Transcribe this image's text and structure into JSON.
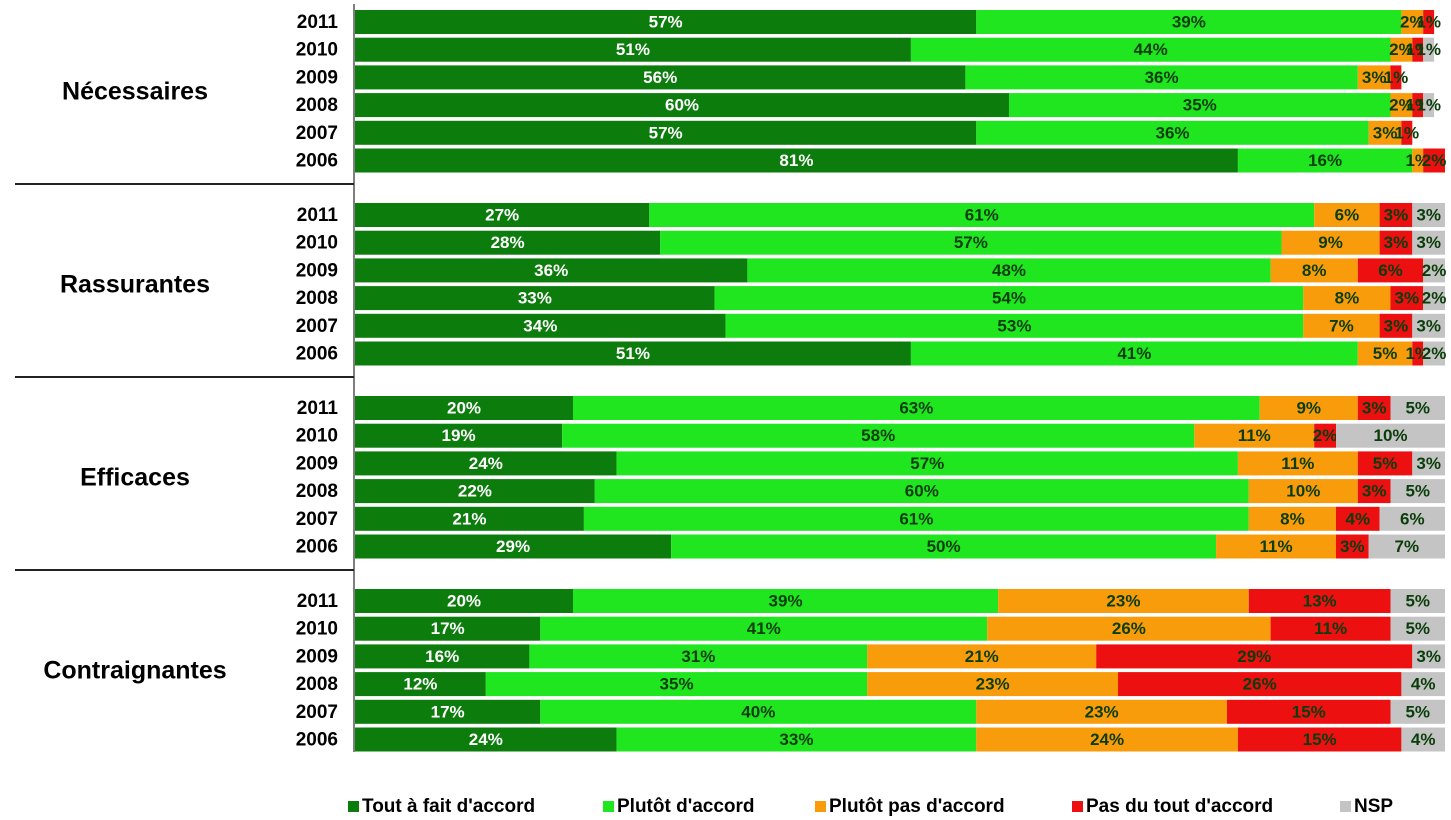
{
  "chart_data": {
    "type": "bar",
    "orientation": "horizontal",
    "stacked": true,
    "xlim": [
      0,
      100
    ],
    "series": [
      {
        "name": "Tout à fait d'accord",
        "color": "#0c7c0c"
      },
      {
        "name": "Plutôt d'accord",
        "color": "#1fe61f"
      },
      {
        "name": "Plutôt pas d'accord",
        "color": "#f89c0c"
      },
      {
        "name": "Pas du tout d'accord",
        "color": "#ec1010"
      },
      {
        "name": "NSP",
        "color": "#c4c4c4"
      }
    ],
    "groups": [
      {
        "label": "Nécessaires",
        "categories": [
          "2011",
          "2010",
          "2009",
          "2008",
          "2007",
          "2006"
        ],
        "values": [
          [
            57,
            39,
            2,
            1,
            null
          ],
          [
            51,
            44,
            2,
            1,
            1
          ],
          [
            56,
            36,
            3,
            1,
            null
          ],
          [
            60,
            35,
            2,
            1,
            1
          ],
          [
            57,
            36,
            3,
            1,
            null
          ],
          [
            81,
            16,
            1,
            2,
            null
          ]
        ],
        "value_labels": [
          [
            "57%",
            "39%",
            "2%",
            "1%",
            null
          ],
          [
            "51%",
            "44%",
            "2%",
            "1%",
            "1%"
          ],
          [
            "56%",
            "36%",
            "3%",
            "1%",
            null
          ],
          [
            "60%",
            "35%",
            "2%",
            "1%",
            "1%"
          ],
          [
            "57%",
            "36%",
            "3%",
            "1%",
            null
          ],
          [
            "81%",
            "16%",
            "1%",
            "2%",
            null
          ]
        ]
      },
      {
        "label": "Rassurantes",
        "categories": [
          "2011",
          "2010",
          "2009",
          "2008",
          "2007",
          "2006"
        ],
        "values": [
          [
            27,
            61,
            6,
            3,
            3
          ],
          [
            28,
            57,
            9,
            3,
            3
          ],
          [
            36,
            48,
            8,
            6,
            2
          ],
          [
            33,
            54,
            8,
            3,
            2
          ],
          [
            34,
            53,
            7,
            3,
            3
          ],
          [
            51,
            41,
            5,
            1,
            2
          ]
        ],
        "value_labels": [
          [
            "27%",
            "61%",
            "6%",
            "3%",
            "3%"
          ],
          [
            "28%",
            "57%",
            "9%",
            "3%",
            "3%"
          ],
          [
            "36%",
            "48%",
            "8%",
            "6%",
            "2%"
          ],
          [
            "33%",
            "54%",
            "8%",
            "3%",
            "2%"
          ],
          [
            "34%",
            "53%",
            "7%",
            "3%",
            "3%"
          ],
          [
            "51%",
            "41%",
            "5%",
            "1%",
            "2%"
          ]
        ]
      },
      {
        "label": "Efficaces",
        "categories": [
          "2011",
          "2010",
          "2009",
          "2008",
          "2007",
          "2006"
        ],
        "values": [
          [
            20,
            63,
            9,
            3,
            5
          ],
          [
            19,
            58,
            11,
            2,
            10
          ],
          [
            24,
            57,
            11,
            5,
            3
          ],
          [
            22,
            60,
            10,
            3,
            5
          ],
          [
            21,
            61,
            8,
            4,
            6
          ],
          [
            29,
            50,
            11,
            3,
            7
          ]
        ],
        "value_labels": [
          [
            "20%",
            "63%",
            "9%",
            "3%",
            "5%"
          ],
          [
            "19%",
            "58%",
            "11%",
            "2%",
            "10%"
          ],
          [
            "24%",
            "57%",
            "11%",
            "5%",
            "3%"
          ],
          [
            "22%",
            "60%",
            "10%",
            "3%",
            "5%"
          ],
          [
            "21%",
            "61%",
            "8%",
            "4%",
            "6%"
          ],
          [
            "29%",
            "50%",
            "11%",
            "3%",
            "7%"
          ]
        ]
      },
      {
        "label": "Contraignantes",
        "categories": [
          "2011",
          "2010",
          "2009",
          "2008",
          "2007",
          "2006"
        ],
        "values": [
          [
            20,
            39,
            23,
            13,
            5
          ],
          [
            17,
            41,
            26,
            11,
            5
          ],
          [
            16,
            31,
            21,
            29,
            3
          ],
          [
            12,
            35,
            23,
            26,
            4
          ],
          [
            17,
            40,
            23,
            15,
            5
          ],
          [
            24,
            33,
            24,
            15,
            4
          ]
        ],
        "value_labels": [
          [
            "20%",
            "39%",
            "23%",
            "13%",
            "5%"
          ],
          [
            "17%",
            "41%",
            "26%",
            "11%",
            "5%"
          ],
          [
            "16%",
            "31%",
            "21%",
            "29%",
            "3%"
          ],
          [
            "12%",
            "35%",
            "23%",
            "26%",
            "4%"
          ],
          [
            "17%",
            "40%",
            "23%",
            "15%",
            "5%"
          ],
          [
            "24%",
            "33%",
            "24%",
            "15%",
            "4%"
          ]
        ]
      }
    ]
  }
}
